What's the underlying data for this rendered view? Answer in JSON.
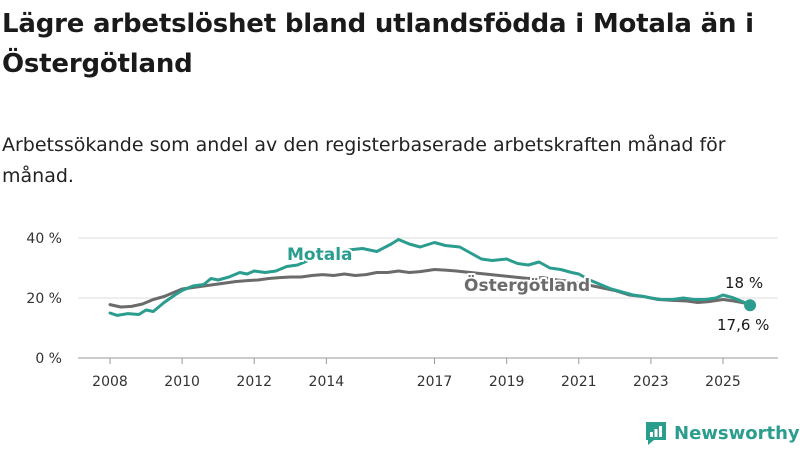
{
  "header": {
    "title": "Lägre arbetslöshet bland utlandsfödda i Motala än i Östergötland",
    "subtitle": "Arbetssökande som andel av den registerbaserade arbetskraften månad för månad."
  },
  "brand": {
    "name": "Newsworthy",
    "icon": "newsworthy-chart-logo-icon",
    "color": "#2a9d8f"
  },
  "chart_data": {
    "type": "line",
    "title": "",
    "xlabel": "",
    "ylabel": "",
    "x_ticks": [
      "2008",
      "2010",
      "2012",
      "2014",
      "2017",
      "2019",
      "2021",
      "2023",
      "2025"
    ],
    "x_tick_values": [
      2008,
      2010,
      2012,
      2014,
      2017,
      2019,
      2021,
      2023,
      2025
    ],
    "y_ticks": [
      "0 %",
      "20 %",
      "40 %"
    ],
    "y_tick_values": [
      0,
      20,
      40
    ],
    "xlim": [
      2008,
      2025.8
    ],
    "ylim": [
      0,
      40
    ],
    "grid": true,
    "series": [
      {
        "name": "Motala",
        "color": "#2a9d8f",
        "points": [
          [
            2008.0,
            15.0
          ],
          [
            2008.2,
            14.2
          ],
          [
            2008.5,
            14.8
          ],
          [
            2008.8,
            14.5
          ],
          [
            2009.0,
            16.0
          ],
          [
            2009.2,
            15.5
          ],
          [
            2009.5,
            18.5
          ],
          [
            2009.8,
            21.0
          ],
          [
            2010.0,
            22.5
          ],
          [
            2010.3,
            24.0
          ],
          [
            2010.6,
            24.5
          ],
          [
            2010.8,
            26.5
          ],
          [
            2011.0,
            26.0
          ],
          [
            2011.3,
            27.0
          ],
          [
            2011.6,
            28.5
          ],
          [
            2011.8,
            28.0
          ],
          [
            2012.0,
            29.0
          ],
          [
            2012.3,
            28.5
          ],
          [
            2012.6,
            29.0
          ],
          [
            2012.9,
            30.5
          ],
          [
            2013.2,
            31.0
          ],
          [
            2013.5,
            32.5
          ],
          [
            2013.8,
            34.0
          ],
          [
            2014.2,
            35.0
          ],
          [
            2014.6,
            36.0
          ],
          [
            2015.0,
            36.5
          ],
          [
            2015.4,
            35.5
          ],
          [
            2015.8,
            38.0
          ],
          [
            2016.0,
            39.5
          ],
          [
            2016.3,
            38.0
          ],
          [
            2016.6,
            37.0
          ],
          [
            2017.0,
            38.5
          ],
          [
            2017.3,
            37.5
          ],
          [
            2017.7,
            37.0
          ],
          [
            2018.0,
            35.0
          ],
          [
            2018.3,
            33.0
          ],
          [
            2018.6,
            32.5
          ],
          [
            2019.0,
            33.0
          ],
          [
            2019.3,
            31.5
          ],
          [
            2019.6,
            31.0
          ],
          [
            2019.9,
            32.0
          ],
          [
            2020.2,
            30.0
          ],
          [
            2020.5,
            29.5
          ],
          [
            2020.8,
            28.5
          ],
          [
            2021.0,
            28.0
          ],
          [
            2021.3,
            26.0
          ],
          [
            2021.6,
            24.5
          ],
          [
            2021.9,
            23.0
          ],
          [
            2022.2,
            22.0
          ],
          [
            2022.5,
            21.0
          ],
          [
            2022.8,
            20.5
          ],
          [
            2023.0,
            20.0
          ],
          [
            2023.3,
            19.5
          ],
          [
            2023.6,
            19.5
          ],
          [
            2023.9,
            20.0
          ],
          [
            2024.2,
            19.5
          ],
          [
            2024.5,
            19.5
          ],
          [
            2024.8,
            20.0
          ],
          [
            2025.0,
            21.0
          ],
          [
            2025.3,
            20.0
          ],
          [
            2025.6,
            18.5
          ],
          [
            2025.75,
            17.6
          ]
        ]
      },
      {
        "name": "Östergötland",
        "color": "#6b6b6b",
        "points": [
          [
            2008.0,
            17.8
          ],
          [
            2008.3,
            17.0
          ],
          [
            2008.6,
            17.2
          ],
          [
            2008.9,
            18.0
          ],
          [
            2009.2,
            19.5
          ],
          [
            2009.5,
            20.5
          ],
          [
            2009.8,
            22.0
          ],
          [
            2010.0,
            23.0
          ],
          [
            2010.3,
            23.5
          ],
          [
            2010.6,
            24.0
          ],
          [
            2010.9,
            24.5
          ],
          [
            2011.2,
            25.0
          ],
          [
            2011.5,
            25.5
          ],
          [
            2011.8,
            25.8
          ],
          [
            2012.1,
            26.0
          ],
          [
            2012.4,
            26.5
          ],
          [
            2012.7,
            26.8
          ],
          [
            2013.0,
            27.0
          ],
          [
            2013.3,
            27.0
          ],
          [
            2013.6,
            27.5
          ],
          [
            2013.9,
            27.8
          ],
          [
            2014.2,
            27.5
          ],
          [
            2014.5,
            28.0
          ],
          [
            2014.8,
            27.5
          ],
          [
            2015.1,
            27.8
          ],
          [
            2015.4,
            28.5
          ],
          [
            2015.7,
            28.5
          ],
          [
            2016.0,
            29.0
          ],
          [
            2016.3,
            28.5
          ],
          [
            2016.6,
            28.8
          ],
          [
            2017.0,
            29.5
          ],
          [
            2017.3,
            29.3
          ],
          [
            2017.6,
            29.0
          ],
          [
            2018.0,
            28.5
          ],
          [
            2018.4,
            28.0
          ],
          [
            2018.8,
            27.5
          ],
          [
            2019.2,
            27.0
          ],
          [
            2019.6,
            26.5
          ],
          [
            2020.0,
            26.8
          ],
          [
            2020.4,
            26.0
          ],
          [
            2020.8,
            25.5
          ],
          [
            2021.2,
            24.5
          ],
          [
            2021.6,
            23.5
          ],
          [
            2022.0,
            22.5
          ],
          [
            2022.4,
            21.0
          ],
          [
            2022.8,
            20.5
          ],
          [
            2023.2,
            19.5
          ],
          [
            2023.6,
            19.2
          ],
          [
            2024.0,
            19.0
          ],
          [
            2024.3,
            18.5
          ],
          [
            2024.6,
            18.8
          ],
          [
            2025.0,
            19.5
          ],
          [
            2025.3,
            19.0
          ],
          [
            2025.75,
            18.0
          ]
        ]
      }
    ],
    "labels": {
      "motala_series": "Motala",
      "ostergotland_series": "Östergötland",
      "motala_last_value": "17,6 %",
      "ostergotland_last_value": "18 %"
    }
  }
}
